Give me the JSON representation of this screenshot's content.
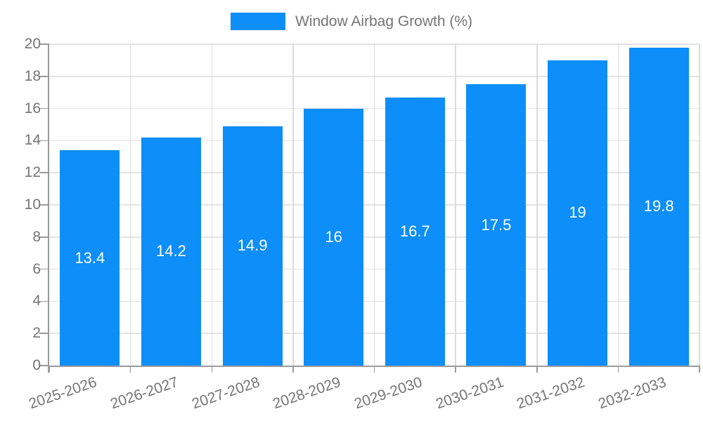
{
  "legend": {
    "label": "Window Airbag Growth (%)"
  },
  "chart_data": {
    "type": "bar",
    "title": "",
    "categories": [
      "2025-2026",
      "2026-2027",
      "2027-2028",
      "2028-2029",
      "2029-2030",
      "2030-2031",
      "2031-2032",
      "2032-2033"
    ],
    "series": [
      {
        "name": "Window Airbag Growth (%)",
        "values": [
          13.4,
          14.2,
          14.9,
          16,
          16.7,
          17.5,
          19,
          19.8
        ]
      }
    ],
    "value_labels": [
      "13.4",
      "14.2",
      "14.9",
      "16",
      "16.7",
      "17.5",
      "19",
      "19.8"
    ],
    "xlabel": "",
    "ylabel": "",
    "ylim": [
      0,
      20
    ],
    "ytick_step": 2,
    "ytick_labels": [
      "0",
      "2",
      "4",
      "6",
      "8",
      "10",
      "12",
      "14",
      "16",
      "18",
      "20"
    ],
    "grid": true,
    "legend_position": "top-center",
    "colors": {
      "bar": "#0d8ef8",
      "bar_value_text": "#ffffff",
      "axis_text": "#757575",
      "grid_h": "#e3e3e3",
      "grid_v": "#dcdcdc",
      "axis_line": "#9a9a9a",
      "background": "#ffffff"
    }
  }
}
